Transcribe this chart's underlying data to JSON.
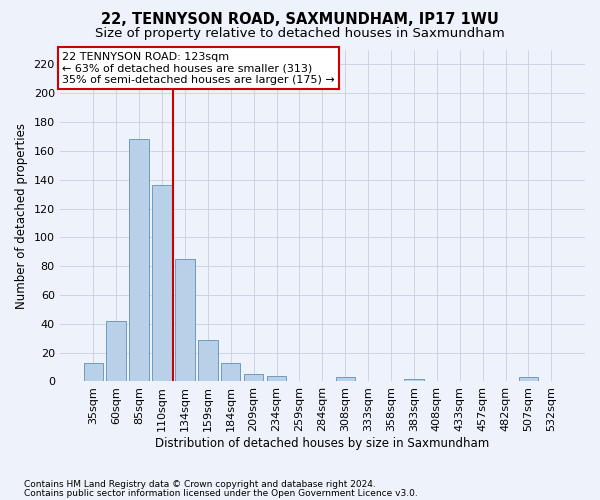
{
  "title": "22, TENNYSON ROAD, SAXMUNDHAM, IP17 1WU",
  "subtitle": "Size of property relative to detached houses in Saxmundham",
  "xlabel": "Distribution of detached houses by size in Saxmundham",
  "ylabel": "Number of detached properties",
  "categories": [
    "35sqm",
    "60sqm",
    "85sqm",
    "110sqm",
    "134sqm",
    "159sqm",
    "184sqm",
    "209sqm",
    "234sqm",
    "259sqm",
    "284sqm",
    "308sqm",
    "333sqm",
    "358sqm",
    "383sqm",
    "408sqm",
    "433sqm",
    "457sqm",
    "482sqm",
    "507sqm",
    "532sqm"
  ],
  "values": [
    13,
    42,
    168,
    136,
    85,
    29,
    13,
    5,
    4,
    0,
    0,
    3,
    0,
    0,
    2,
    0,
    0,
    0,
    0,
    3,
    0
  ],
  "bar_color": "#b8d0e8",
  "bar_edge_color": "#6090b8",
  "vline_x_index": 3,
  "vline_color": "#cc0000",
  "annotation_line1": "22 TENNYSON ROAD: 123sqm",
  "annotation_line2": "← 63% of detached houses are smaller (313)",
  "annotation_line3": "35% of semi-detached houses are larger (175) →",
  "annotation_box_color": "#ffffff",
  "annotation_box_edge": "#cc0000",
  "ylim": [
    0,
    230
  ],
  "yticks": [
    0,
    20,
    40,
    60,
    80,
    100,
    120,
    140,
    160,
    180,
    200,
    220
  ],
  "footnote1": "Contains HM Land Registry data © Crown copyright and database right 2024.",
  "footnote2": "Contains public sector information licensed under the Open Government Licence v3.0.",
  "background_color": "#eef2fa",
  "plot_bg_color": "#eef2fa",
  "grid_color": "#c8cfe0",
  "title_fontsize": 10.5,
  "subtitle_fontsize": 9.5,
  "axis_label_fontsize": 8.5,
  "tick_fontsize": 8,
  "annotation_fontsize": 8,
  "footnote_fontsize": 6.5
}
